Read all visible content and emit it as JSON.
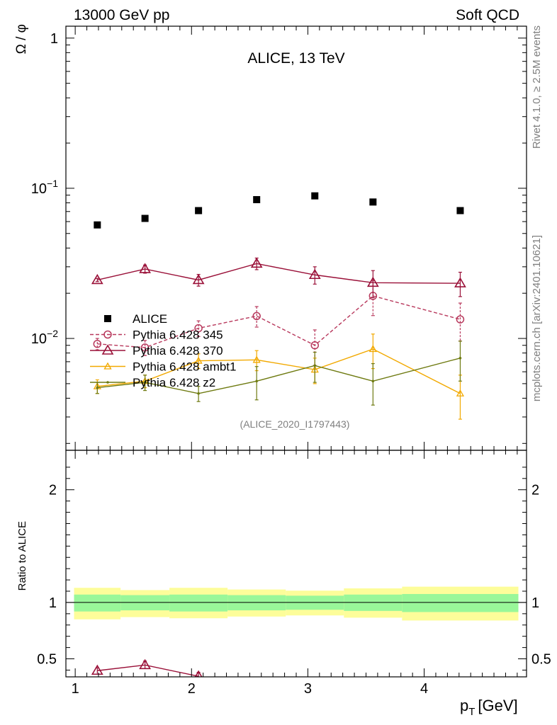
{
  "header": {
    "energy_label": "13000 GeV pp",
    "process_label": "Soft QCD",
    "title": "ALICE, 13 TeV",
    "side_label_top": "Rivet 4.1.0, ≥ 2.5M events",
    "side_label_bottom": "mcplots.cern.ch [arXiv:2401.10621]",
    "analysis_id": "(ALICE_2020_I1797443)"
  },
  "colors": {
    "alice": "#000000",
    "p345": "#b8385c",
    "p370": "#9a1038",
    "ambt1": "#f2a900",
    "z2": "#6e7a10",
    "band_inner": "#99f799",
    "band_outer": "#fdfd9a"
  },
  "chart_data": [
    {
      "type": "scatter",
      "panel": "main",
      "ylabel": "Ω / φ",
      "yscale": "log",
      "xlim": [
        0.92,
        4.88
      ],
      "ylim": [
        0.0018,
        1.2
      ],
      "y_tick_labels": [
        {
          "value": 1,
          "base": "1",
          "exp": ""
        },
        {
          "value": 0.1,
          "base": "10",
          "exp": "−1"
        },
        {
          "value": 0.01,
          "base": "10",
          "exp": "−2"
        }
      ],
      "legend": [
        {
          "key": "alice",
          "label": "ALICE",
          "marker": "square",
          "style": "none"
        },
        {
          "key": "p345",
          "label": "Pythia 6.428 345",
          "marker": "circle",
          "style": "dashed"
        },
        {
          "key": "p370",
          "label": "Pythia 6.428 370",
          "marker": "triangle",
          "style": "solid"
        },
        {
          "key": "ambt1",
          "label": "Pythia 6.428 ambt1",
          "marker": "triangle-small",
          "style": "solid"
        },
        {
          "key": "z2",
          "label": "Pythia 6.428 z2",
          "marker": "dot",
          "style": "solid"
        }
      ],
      "bins": [
        {
          "lo": 0.99,
          "hi": 1.39
        },
        {
          "lo": 1.39,
          "hi": 1.81
        },
        {
          "lo": 1.81,
          "hi": 2.31
        },
        {
          "lo": 2.31,
          "hi": 2.81
        },
        {
          "lo": 2.81,
          "hi": 3.31
        },
        {
          "lo": 3.31,
          "hi": 3.81
        },
        {
          "lo": 3.81,
          "hi": 4.81
        }
      ],
      "series": [
        {
          "key": "alice",
          "name": "ALICE",
          "x": [
            1.19,
            1.6,
            2.06,
            2.56,
            3.06,
            3.56,
            4.31
          ],
          "y": [
            0.057,
            0.063,
            0.071,
            0.084,
            0.089,
            0.081,
            0.071
          ],
          "err": [
            0,
            0,
            0,
            0,
            0,
            0,
            0
          ]
        },
        {
          "key": "p370",
          "name": "Pythia 6.428 370",
          "x": [
            1.19,
            1.6,
            2.06,
            2.56,
            3.06,
            3.56,
            4.31
          ],
          "y": [
            0.0245,
            0.029,
            0.0245,
            0.0315,
            0.0265,
            0.0235,
            0.0233
          ],
          "err": [
            0.0006,
            0.0018,
            0.0022,
            0.0028,
            0.0035,
            0.0048,
            0.0043
          ]
        },
        {
          "key": "p345",
          "name": "Pythia 6.428 345",
          "x": [
            1.19,
            1.6,
            2.06,
            2.56,
            3.06,
            3.56,
            4.31
          ],
          "y": [
            0.0092,
            0.0087,
            0.0117,
            0.0141,
            0.009,
            0.0192,
            0.0134
          ],
          "err": [
            0.0008,
            0.001,
            0.0014,
            0.0022,
            0.0024,
            0.005,
            0.0038
          ]
        },
        {
          "key": "ambt1",
          "name": "Pythia 6.428 ambt1",
          "x": [
            1.19,
            1.6,
            2.06,
            2.56,
            3.06,
            3.56,
            4.31
          ],
          "y": [
            0.0048,
            0.0052,
            0.0071,
            0.0072,
            0.0062,
            0.0085,
            0.0043
          ],
          "err": [
            0.0005,
            0.0005,
            0.0008,
            0.0011,
            0.0012,
            0.0022,
            0.0014
          ]
        },
        {
          "key": "z2",
          "name": "Pythia 6.428 z2",
          "x": [
            1.19,
            1.6,
            2.06,
            2.56,
            3.06,
            3.56,
            4.31
          ],
          "y": [
            0.0047,
            0.0051,
            0.0043,
            0.0052,
            0.0066,
            0.0052,
            0.0074
          ],
          "err": [
            0.0004,
            0.0006,
            0.0005,
            0.0013,
            0.0015,
            0.0016,
            0.0022
          ]
        }
      ]
    },
    {
      "type": "line",
      "panel": "ratio",
      "ylabel": "Ratio to ALICE",
      "xlabel": "p",
      "xlabel_sub": "T",
      "xlabel_unit": "[GeV]",
      "xlim": [
        0.92,
        4.88
      ],
      "ylim": [
        0.34,
        2.35
      ],
      "x_ticks": [
        1,
        2,
        3,
        4
      ],
      "x_tick_labels": [
        "1",
        "2",
        "3",
        "4"
      ],
      "y_ticks": [
        0.5,
        1,
        2
      ],
      "y_tick_labels": [
        "0.5",
        "1",
        "2"
      ],
      "reference_line": 1,
      "bands": [
        {
          "lo": 0.99,
          "hi": 1.39,
          "inner": [
            0.92,
            1.07
          ],
          "outer": [
            0.85,
            1.13
          ]
        },
        {
          "lo": 1.39,
          "hi": 1.81,
          "inner": [
            0.93,
            1.065
          ],
          "outer": [
            0.87,
            1.11
          ]
        },
        {
          "lo": 1.81,
          "hi": 2.31,
          "inner": [
            0.92,
            1.07
          ],
          "outer": [
            0.86,
            1.13
          ]
        },
        {
          "lo": 2.31,
          "hi": 2.81,
          "inner": [
            0.93,
            1.065
          ],
          "outer": [
            0.875,
            1.115
          ]
        },
        {
          "lo": 2.81,
          "hi": 3.31,
          "inner": [
            0.935,
            1.06
          ],
          "outer": [
            0.885,
            1.105
          ]
        },
        {
          "lo": 3.31,
          "hi": 3.81,
          "inner": [
            0.925,
            1.07
          ],
          "outer": [
            0.865,
            1.125
          ]
        },
        {
          "lo": 3.81,
          "hi": 4.81,
          "inner": [
            0.915,
            1.075
          ],
          "outer": [
            0.84,
            1.14
          ]
        }
      ],
      "series": [
        {
          "key": "p370",
          "name": "Pythia 6.428 370",
          "x": [
            1.19,
            1.6,
            2.06
          ],
          "y": [
            0.395,
            0.445,
            0.345
          ],
          "err": [
            0.025,
            0.035,
            0.035
          ]
        }
      ]
    }
  ]
}
